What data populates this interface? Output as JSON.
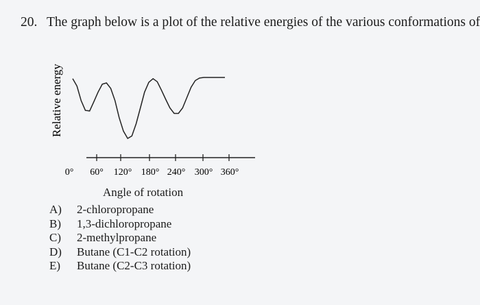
{
  "question": {
    "number": "20.",
    "text": "The graph below is a plot of the relative energies of the various conformations of:"
  },
  "chart_data": {
    "type": "line",
    "title": "",
    "xlabel": "Angle of rotation",
    "ylabel": "Relative energy",
    "x_ticks": [
      "0°",
      "60°",
      "120°",
      "180°",
      "240°",
      "300°",
      "360°"
    ],
    "xlim": [
      0,
      360
    ],
    "grid": false,
    "series": [
      {
        "x": [
          0,
          10,
          20,
          30,
          40,
          50,
          60,
          70,
          80,
          90,
          100,
          110,
          120,
          130,
          140,
          150,
          160,
          170,
          180,
          190,
          200,
          210,
          220,
          230,
          240,
          250,
          260,
          270,
          280,
          290,
          300,
          310,
          320,
          330,
          340,
          350,
          360
        ],
        "y": [
          0.98,
          0.86,
          0.62,
          0.46,
          0.45,
          0.6,
          0.76,
          0.89,
          0.91,
          0.82,
          0.62,
          0.34,
          0.12,
          0.0,
          0.04,
          0.24,
          0.5,
          0.76,
          0.92,
          0.98,
          0.93,
          0.79,
          0.64,
          0.5,
          0.41,
          0.41,
          0.5,
          0.67,
          0.84,
          0.95,
          0.99,
          1.0,
          1.0,
          1.0,
          1.0,
          1.0,
          1.0
        ]
      }
    ]
  },
  "choices": [
    {
      "letter": "A)",
      "text": "2-chloropropane"
    },
    {
      "letter": "B)",
      "text": "1,3-dichloropropane"
    },
    {
      "letter": "C)",
      "text": "2-methylpropane"
    },
    {
      "letter": "D)",
      "text": "Butane (C1-C2 rotation)"
    },
    {
      "letter": "E)",
      "text": "Butane (C2-C3 rotation)"
    }
  ]
}
